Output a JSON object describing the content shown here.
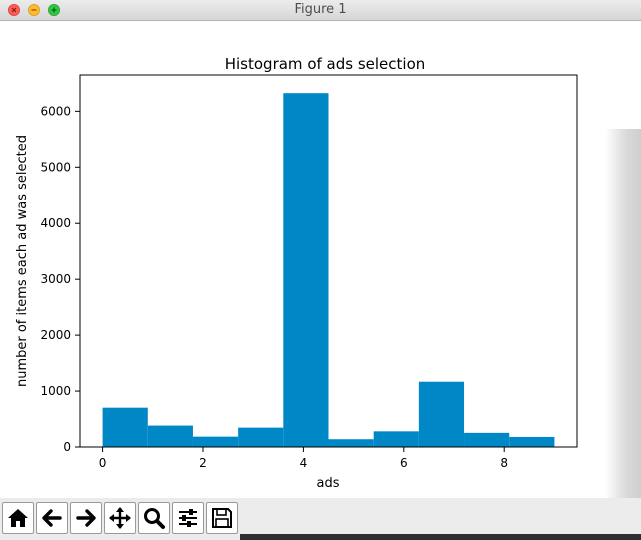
{
  "window": {
    "title": "Figure 1",
    "controls": [
      "close-icon",
      "minimize-icon",
      "maximize-icon"
    ]
  },
  "toolbar": {
    "buttons": [
      {
        "name": "home-button",
        "icon": "home-icon"
      },
      {
        "name": "back-button",
        "icon": "arrow-left-icon"
      },
      {
        "name": "forward-button",
        "icon": "arrow-right-icon"
      },
      {
        "name": "pan-button",
        "icon": "move-icon"
      },
      {
        "name": "zoom-button",
        "icon": "magnifier-icon"
      },
      {
        "name": "subplots-button",
        "icon": "sliders-icon"
      },
      {
        "name": "save-button",
        "icon": "floppy-disk-icon"
      }
    ]
  },
  "chart_data": {
    "type": "bar",
    "title": "Histogram of ads selection",
    "xlabel": "ads",
    "ylabel": "number of items each ad was selected",
    "bins": [
      {
        "start": 0.0,
        "end": 0.9,
        "value": 703
      },
      {
        "start": 0.9,
        "end": 1.8,
        "value": 383
      },
      {
        "start": 1.8,
        "end": 2.7,
        "value": 185
      },
      {
        "start": 2.7,
        "end": 3.6,
        "value": 346
      },
      {
        "start": 3.6,
        "end": 4.5,
        "value": 6325
      },
      {
        "start": 4.5,
        "end": 5.4,
        "value": 139
      },
      {
        "start": 5.4,
        "end": 6.3,
        "value": 280
      },
      {
        "start": 6.3,
        "end": 7.2,
        "value": 1167
      },
      {
        "start": 7.2,
        "end": 8.1,
        "value": 253
      },
      {
        "start": 8.1,
        "end": 9.0,
        "value": 180
      }
    ],
    "xlim": [
      -0.45,
      9.45
    ],
    "ylim": [
      0,
      6650
    ],
    "xticks": [
      0,
      2,
      4,
      6,
      8
    ],
    "yticks": [
      0,
      1000,
      2000,
      3000,
      4000,
      5000,
      6000
    ],
    "bar_color": "#0088c6",
    "grid": false,
    "legend": false
  }
}
